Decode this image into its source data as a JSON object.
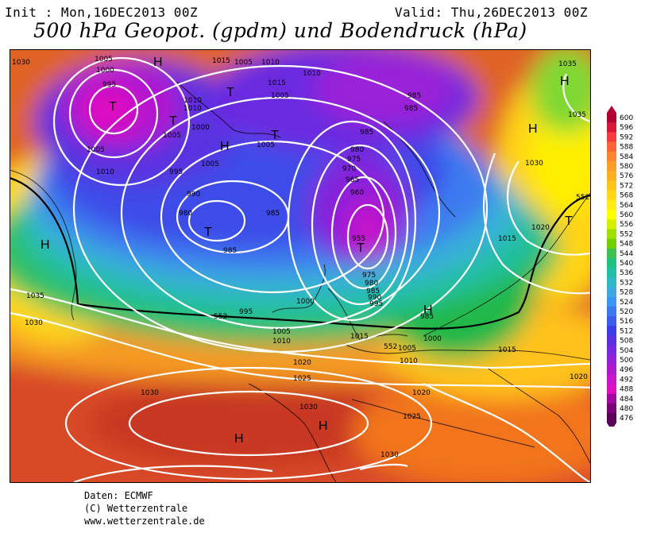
{
  "header": {
    "init": "Init : Mon,16DEC2013 00Z",
    "valid": "Valid: Thu,26DEC2013 00Z",
    "title": "500 hPa Geopot. (gpdm) und Bodendruck (hPa)"
  },
  "map": {
    "isobar_labels": [
      "1030",
      "1005",
      "1000",
      "995",
      "1015",
      "1005",
      "1010",
      "1010",
      "1010",
      "1035",
      "1015",
      "1005",
      "1010",
      "985",
      "1035",
      "1005",
      "1000",
      "1005",
      "1005",
      "985",
      "980",
      "975",
      "970",
      "965",
      "960",
      "955",
      "995",
      "1005",
      "990",
      "980",
      "985",
      "985",
      "1030",
      "1010",
      "985",
      "1015",
      "1020",
      "975",
      "980",
      "985",
      "990",
      "995",
      "1000",
      "995",
      "1035",
      "1030",
      "1005",
      "1010",
      "1015",
      "1005",
      "1010",
      "1000",
      "985",
      "1015",
      "1020",
      "1025",
      "1030",
      "1030",
      "1020",
      "1025",
      "1030",
      "1020",
      "552",
      "552",
      "552"
    ],
    "pressure_centers": [
      "H",
      "T",
      "T",
      "H",
      "T",
      "H",
      "T",
      "H",
      "T",
      "T",
      "T",
      "H",
      "H",
      "H",
      "H"
    ]
  },
  "colorbar": {
    "labels": [
      "600",
      "596",
      "592",
      "588",
      "584",
      "580",
      "576",
      "572",
      "568",
      "564",
      "560",
      "556",
      "552",
      "548",
      "544",
      "540",
      "536",
      "532",
      "528",
      "524",
      "520",
      "516",
      "512",
      "508",
      "504",
      "500",
      "496",
      "492",
      "488",
      "484",
      "480",
      "476"
    ],
    "colors": [
      "#b30033",
      "#d8163a",
      "#f53c3c",
      "#ff6438",
      "#ff8430",
      "#ff9c28",
      "#ffb020",
      "#ffc41c",
      "#ffd818",
      "#ffec14",
      "#ffff00",
      "#d4f000",
      "#a0e000",
      "#70d000",
      "#40c050",
      "#20c080",
      "#20c0a8",
      "#30b8c8",
      "#40a8e0",
      "#3c94f4",
      "#3c78f0",
      "#3c5cf0",
      "#3c3ce8",
      "#5a30e0",
      "#7828e0",
      "#9420d8",
      "#b018d0",
      "#cc14c8",
      "#e010c0",
      "#a008a0",
      "#7a0078",
      "#5a005a"
    ]
  },
  "credits": {
    "line1": "Daten: ECMWF",
    "line2": "(C) Wetterzentrale",
    "line3": "www.wetterzentrale.de"
  }
}
